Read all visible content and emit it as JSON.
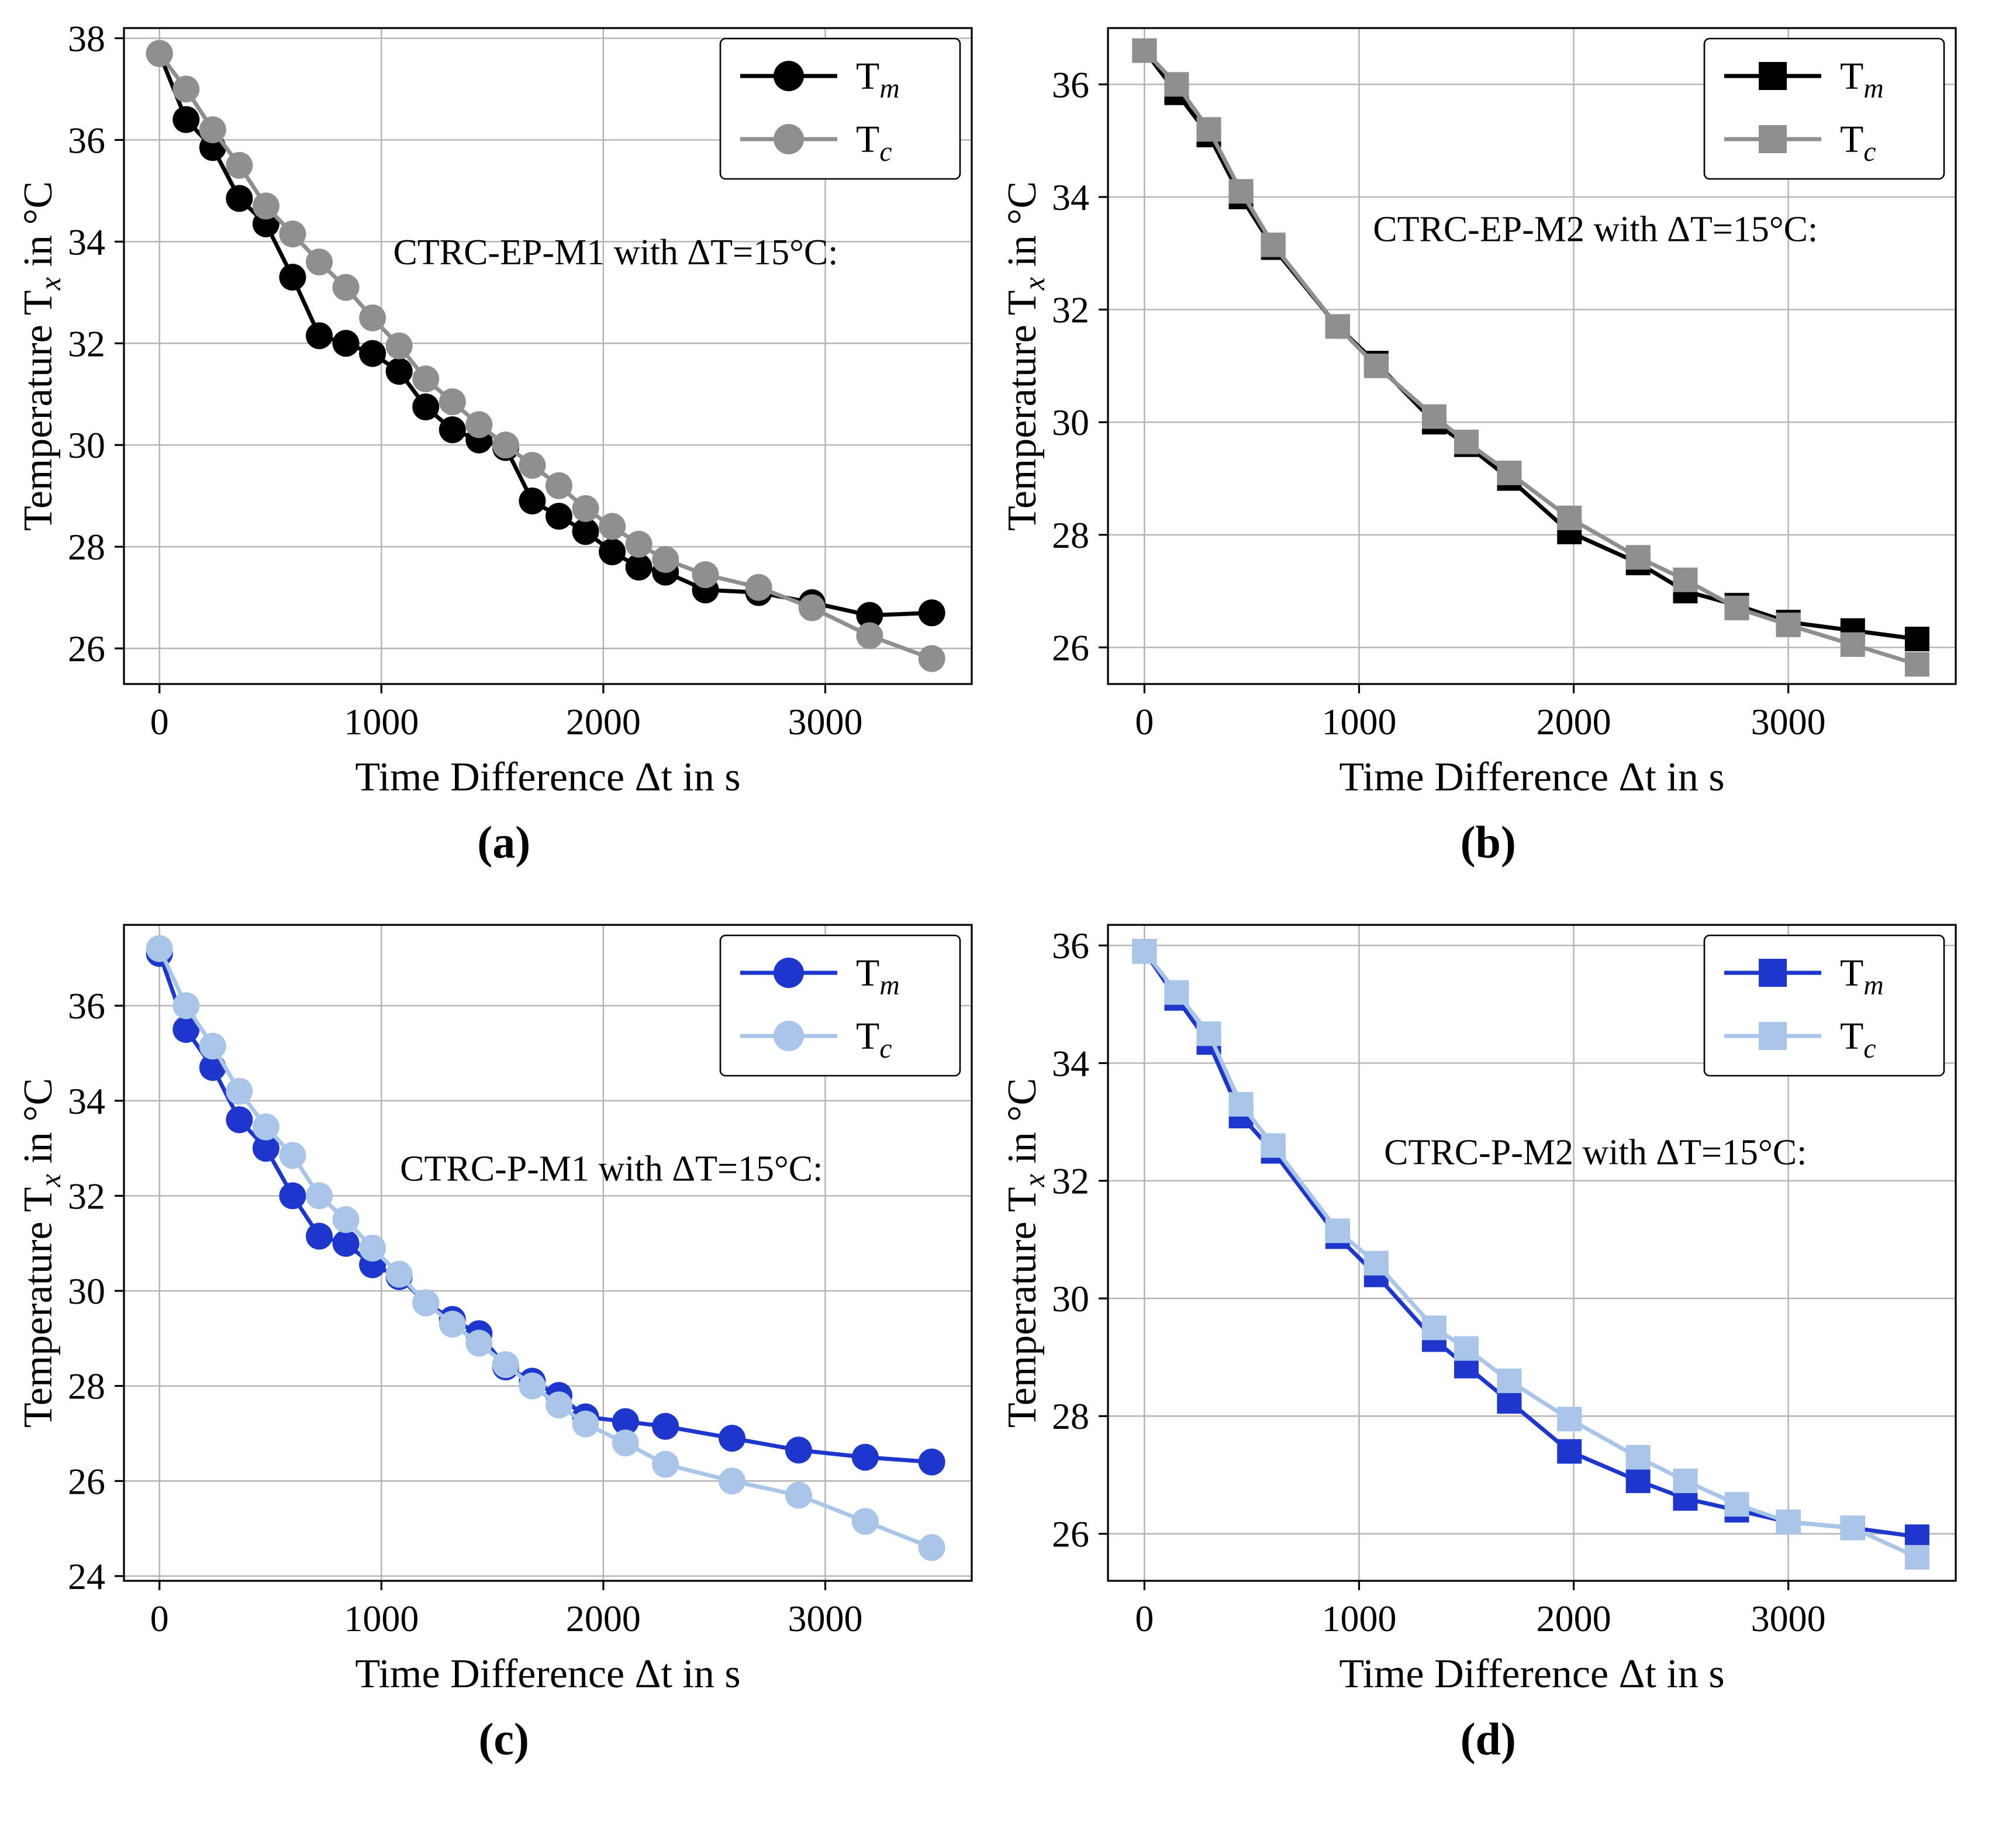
{
  "figure": {
    "captions": [
      "(a)",
      "(b)",
      "(c)",
      "(d)"
    ]
  },
  "style": {
    "grid_color": "#b3b3b3",
    "border_color": "#000000",
    "background": "#ffffff",
    "black": "#000000",
    "gray": "#8f8f8f",
    "blue": "#1d36cc",
    "light_blue": "#a9c5e8"
  },
  "chart_data": [
    {
      "id": "a",
      "type": "line",
      "annotation": {
        "text": "CTRC-EP-M1 with ΔT=15°C:",
        "fx": 0.58,
        "fy": 0.36
      },
      "xlabel": "Time Difference Δt in s",
      "ylabel": "Temperature T_x in °C",
      "xlim": [
        -160,
        3660
      ],
      "ylim": [
        25.3,
        38.2
      ],
      "xticks": [
        0,
        1000,
        2000,
        3000
      ],
      "yticks": [
        26,
        28,
        30,
        32,
        34,
        36,
        38
      ],
      "marker": "circle",
      "grid": true,
      "legend_position": "top-right",
      "series": [
        {
          "name": "T_m",
          "color": "#000000",
          "points": [
            [
              0,
              37.7
            ],
            [
              120,
              36.4
            ],
            [
              240,
              35.85
            ],
            [
              360,
              34.85
            ],
            [
              480,
              34.35
            ],
            [
              600,
              33.3
            ],
            [
              720,
              32.15
            ],
            [
              840,
              32.0
            ],
            [
              960,
              31.8
            ],
            [
              1080,
              31.45
            ],
            [
              1200,
              30.75
            ],
            [
              1320,
              30.3
            ],
            [
              1440,
              30.1
            ],
            [
              1560,
              29.95
            ],
            [
              1680,
              28.9
            ],
            [
              1800,
              28.6
            ],
            [
              1920,
              28.3
            ],
            [
              2040,
              27.9
            ],
            [
              2160,
              27.6
            ],
            [
              2280,
              27.5
            ],
            [
              2460,
              27.15
            ],
            [
              2700,
              27.1
            ],
            [
              2940,
              26.9
            ],
            [
              3200,
              26.65
            ],
            [
              3480,
              26.7
            ]
          ]
        },
        {
          "name": "T_c",
          "color": "#8f8f8f",
          "points": [
            [
              0,
              37.7
            ],
            [
              120,
              37.0
            ],
            [
              240,
              36.2
            ],
            [
              360,
              35.5
            ],
            [
              480,
              34.7
            ],
            [
              600,
              34.15
            ],
            [
              720,
              33.6
            ],
            [
              840,
              33.1
            ],
            [
              960,
              32.5
            ],
            [
              1080,
              31.95
            ],
            [
              1200,
              31.3
            ],
            [
              1320,
              30.85
            ],
            [
              1440,
              30.4
            ],
            [
              1560,
              30.0
            ],
            [
              1680,
              29.6
            ],
            [
              1800,
              29.2
            ],
            [
              1920,
              28.75
            ],
            [
              2040,
              28.4
            ],
            [
              2160,
              28.05
            ],
            [
              2280,
              27.75
            ],
            [
              2460,
              27.45
            ],
            [
              2700,
              27.2
            ],
            [
              2940,
              26.8
            ],
            [
              3200,
              26.25
            ],
            [
              3480,
              25.8
            ]
          ]
        }
      ]
    },
    {
      "id": "b",
      "type": "line",
      "annotation": {
        "text": "CTRC-EP-M2 with ΔT=15°C:",
        "fx": 0.575,
        "fy": 0.325
      },
      "xlabel": "Time Difference Δt in s",
      "ylabel": "Temperature T_x in °C",
      "xlim": [
        -170,
        3780
      ],
      "ylim": [
        25.35,
        37.0
      ],
      "xticks": [
        0,
        1000,
        2000,
        3000
      ],
      "yticks": [
        26,
        28,
        30,
        32,
        34,
        36
      ],
      "marker": "square",
      "grid": true,
      "legend_position": "top-right",
      "series": [
        {
          "name": "T_m",
          "color": "#000000",
          "points": [
            [
              0,
              36.6
            ],
            [
              150,
              35.85
            ],
            [
              300,
              35.1
            ],
            [
              450,
              34.0
            ],
            [
              600,
              33.1
            ],
            [
              900,
              31.7
            ],
            [
              1080,
              31.05
            ],
            [
              1350,
              30.0
            ],
            [
              1500,
              29.6
            ],
            [
              1700,
              29.0
            ],
            [
              1980,
              28.05
            ],
            [
              2300,
              27.5
            ],
            [
              2520,
              27.0
            ],
            [
              2760,
              26.75
            ],
            [
              3000,
              26.45
            ],
            [
              3300,
              26.3
            ],
            [
              3600,
              26.15
            ]
          ]
        },
        {
          "name": "T_c",
          "color": "#8f8f8f",
          "points": [
            [
              0,
              36.6
            ],
            [
              150,
              36.0
            ],
            [
              300,
              35.2
            ],
            [
              450,
              34.1
            ],
            [
              600,
              33.15
            ],
            [
              900,
              31.7
            ],
            [
              1080,
              31.0
            ],
            [
              1350,
              30.1
            ],
            [
              1500,
              29.65
            ],
            [
              1700,
              29.1
            ],
            [
              1980,
              28.3
            ],
            [
              2300,
              27.6
            ],
            [
              2520,
              27.2
            ],
            [
              2760,
              26.7
            ],
            [
              3000,
              26.4
            ],
            [
              3300,
              26.05
            ],
            [
              3600,
              25.7
            ]
          ]
        }
      ]
    },
    {
      "id": "c",
      "type": "line",
      "annotation": {
        "text": "CTRC-P-M1 with ΔT=15°C:",
        "fx": 0.575,
        "fy": 0.39
      },
      "xlabel": "Time Difference Δt in s",
      "ylabel": "Temperature T_x in °C",
      "xlim": [
        -160,
        3660
      ],
      "ylim": [
        23.9,
        37.7
      ],
      "xticks": [
        0,
        1000,
        2000,
        3000
      ],
      "yticks": [
        24,
        26,
        28,
        30,
        32,
        34,
        36
      ],
      "marker": "circle",
      "grid": true,
      "legend_position": "top-right",
      "series": [
        {
          "name": "T_m",
          "color": "#1d36cc",
          "points": [
            [
              0,
              37.1
            ],
            [
              120,
              35.5
            ],
            [
              240,
              34.7
            ],
            [
              360,
              33.6
            ],
            [
              480,
              33.0
            ],
            [
              600,
              32.0
            ],
            [
              720,
              31.15
            ],
            [
              840,
              31.0
            ],
            [
              960,
              30.55
            ],
            [
              1080,
              30.3
            ],
            [
              1200,
              29.75
            ],
            [
              1320,
              29.4
            ],
            [
              1440,
              29.1
            ],
            [
              1560,
              28.4
            ],
            [
              1680,
              28.1
            ],
            [
              1800,
              27.8
            ],
            [
              1920,
              27.35
            ],
            [
              2100,
              27.25
            ],
            [
              2280,
              27.15
            ],
            [
              2580,
              26.9
            ],
            [
              2880,
              26.65
            ],
            [
              3180,
              26.5
            ],
            [
              3480,
              26.4
            ]
          ]
        },
        {
          "name": "T_c",
          "color": "#a9c5e8",
          "points": [
            [
              0,
              37.2
            ],
            [
              120,
              36.0
            ],
            [
              240,
              35.15
            ],
            [
              360,
              34.2
            ],
            [
              480,
              33.45
            ],
            [
              600,
              32.85
            ],
            [
              720,
              32.0
            ],
            [
              840,
              31.5
            ],
            [
              960,
              30.9
            ],
            [
              1080,
              30.35
            ],
            [
              1200,
              29.75
            ],
            [
              1320,
              29.3
            ],
            [
              1440,
              28.9
            ],
            [
              1560,
              28.45
            ],
            [
              1680,
              28.0
            ],
            [
              1800,
              27.6
            ],
            [
              1920,
              27.2
            ],
            [
              2100,
              26.8
            ],
            [
              2280,
              26.35
            ],
            [
              2580,
              26.0
            ],
            [
              2880,
              25.7
            ],
            [
              3180,
              25.15
            ],
            [
              3480,
              24.6
            ]
          ]
        }
      ]
    },
    {
      "id": "d",
      "type": "line",
      "annotation": {
        "text": "CTRC-P-M2 with ΔT=15°C:",
        "fx": 0.575,
        "fy": 0.365
      },
      "xlabel": "Time Difference Δt in s",
      "ylabel": "Temperature T_x in °C",
      "xlim": [
        -170,
        3780
      ],
      "ylim": [
        25.2,
        36.35
      ],
      "xticks": [
        0,
        1000,
        2000,
        3000
      ],
      "yticks": [
        26,
        28,
        30,
        32,
        34,
        36
      ],
      "marker": "square",
      "grid": true,
      "legend_position": "top-right",
      "series": [
        {
          "name": "T_m",
          "color": "#1d36cc",
          "points": [
            [
              0,
              35.9
            ],
            [
              150,
              35.1
            ],
            [
              300,
              34.35
            ],
            [
              450,
              33.1
            ],
            [
              600,
              32.5
            ],
            [
              900,
              31.05
            ],
            [
              1080,
              30.4
            ],
            [
              1350,
              29.3
            ],
            [
              1500,
              28.85
            ],
            [
              1700,
              28.25
            ],
            [
              1980,
              27.4
            ],
            [
              2300,
              26.9
            ],
            [
              2520,
              26.6
            ],
            [
              2760,
              26.4
            ],
            [
              3000,
              26.2
            ],
            [
              3300,
              26.1
            ],
            [
              3600,
              25.95
            ]
          ]
        },
        {
          "name": "T_c",
          "color": "#a9c5e8",
          "points": [
            [
              0,
              35.9
            ],
            [
              150,
              35.2
            ],
            [
              300,
              34.5
            ],
            [
              450,
              33.3
            ],
            [
              600,
              32.6
            ],
            [
              900,
              31.15
            ],
            [
              1080,
              30.6
            ],
            [
              1350,
              29.5
            ],
            [
              1500,
              29.15
            ],
            [
              1700,
              28.6
            ],
            [
              1980,
              27.95
            ],
            [
              2300,
              27.3
            ],
            [
              2520,
              26.9
            ],
            [
              2760,
              26.5
            ],
            [
              3000,
              26.2
            ],
            [
              3300,
              26.1
            ],
            [
              3600,
              25.6
            ]
          ]
        }
      ]
    }
  ]
}
